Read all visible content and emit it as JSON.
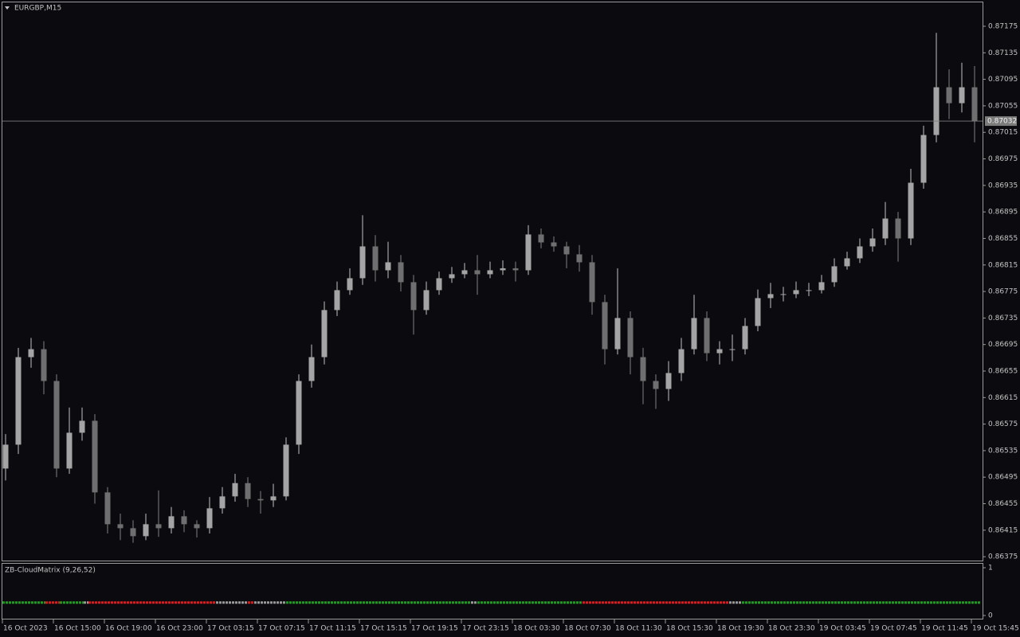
{
  "chart_data": [
    {
      "type": "candlestick",
      "title": "EURGBP,M15",
      "x": [
        1,
        5,
        9,
        13,
        17,
        21,
        25,
        29,
        33,
        37,
        41,
        45,
        49,
        53,
        57,
        61,
        65,
        69,
        73,
        77,
        81,
        85,
        89,
        93,
        97,
        101,
        105,
        109,
        113,
        117,
        121,
        125,
        129,
        133,
        137,
        141,
        145,
        149,
        153,
        157,
        161,
        165,
        169,
        173,
        177,
        181,
        185,
        189,
        193,
        197,
        201,
        205,
        209,
        213,
        217,
        221,
        225,
        229,
        233,
        237,
        241,
        245,
        249,
        253,
        257,
        261,
        265,
        269,
        273,
        277,
        281,
        285,
        289,
        293,
        297,
        301,
        305
      ],
      "open": [
        0.86508,
        0.86544,
        0.86676,
        0.86688,
        0.8664,
        0.86508,
        0.86562,
        0.8658,
        0.86472,
        0.86424,
        0.86418,
        0.86406,
        0.86424,
        0.86418,
        0.86436,
        0.86424,
        0.86418,
        0.86448,
        0.86466,
        0.86486,
        0.86462,
        0.8646,
        0.86466,
        0.86544,
        0.8664,
        0.86676,
        0.86747,
        0.86777,
        0.86795,
        0.86843,
        0.86807,
        0.86819,
        0.86789,
        0.86747,
        0.86777,
        0.86795,
        0.86801,
        0.86807,
        0.86801,
        0.86807,
        0.8681,
        0.86807,
        0.86861,
        0.86849,
        0.86843,
        0.86831,
        0.86819,
        0.86759,
        0.86688,
        0.86735,
        0.86676,
        0.8664,
        0.86628,
        0.86652,
        0.86688,
        0.86735,
        0.86682,
        0.86688,
        0.86688,
        0.86723,
        0.86765,
        0.86771,
        0.86771,
        0.86777,
        0.86777,
        0.86789,
        0.86813,
        0.86825,
        0.86843,
        0.86855,
        0.86885,
        0.86855,
        0.86939,
        0.87011,
        0.87083,
        0.87059,
        0.87083
      ],
      "high": [
        0.8656,
        0.8669,
        0.86705,
        0.867,
        0.8665,
        0.866,
        0.866,
        0.8659,
        0.8648,
        0.8644,
        0.8643,
        0.8644,
        0.86475,
        0.8645,
        0.86445,
        0.8643,
        0.86465,
        0.8648,
        0.865,
        0.86495,
        0.86474,
        0.86485,
        0.86555,
        0.8665,
        0.86695,
        0.8676,
        0.8679,
        0.8681,
        0.8689,
        0.8686,
        0.8685,
        0.8683,
        0.868,
        0.8679,
        0.86805,
        0.86812,
        0.86818,
        0.8683,
        0.8682,
        0.86822,
        0.8682,
        0.86875,
        0.8687,
        0.86858,
        0.8685,
        0.86845,
        0.8683,
        0.8677,
        0.8681,
        0.86745,
        0.8669,
        0.8665,
        0.8667,
        0.86705,
        0.8677,
        0.86745,
        0.867,
        0.8671,
        0.86735,
        0.86778,
        0.86788,
        0.86782,
        0.8679,
        0.86788,
        0.868,
        0.86825,
        0.86835,
        0.86855,
        0.8687,
        0.8691,
        0.86895,
        0.8696,
        0.87025,
        0.87165,
        0.8711,
        0.8712,
        0.87115
      ],
      "low": [
        0.8649,
        0.8653,
        0.8666,
        0.8662,
        0.86495,
        0.865,
        0.8655,
        0.86455,
        0.8641,
        0.864,
        0.86396,
        0.864,
        0.86405,
        0.8641,
        0.86412,
        0.86404,
        0.8641,
        0.8644,
        0.86458,
        0.8645,
        0.8644,
        0.8645,
        0.8646,
        0.8653,
        0.8663,
        0.86665,
        0.86738,
        0.8677,
        0.86785,
        0.8679,
        0.86795,
        0.86775,
        0.8671,
        0.8674,
        0.8677,
        0.86788,
        0.86795,
        0.8677,
        0.86795,
        0.868,
        0.8679,
        0.868,
        0.8684,
        0.86835,
        0.8681,
        0.86805,
        0.8674,
        0.86665,
        0.8668,
        0.8665,
        0.86605,
        0.86598,
        0.8661,
        0.8664,
        0.8668,
        0.8667,
        0.86665,
        0.8667,
        0.8668,
        0.86715,
        0.8675,
        0.8676,
        0.86765,
        0.86768,
        0.86772,
        0.86782,
        0.86808,
        0.86818,
        0.86835,
        0.86845,
        0.8682,
        0.86845,
        0.8693,
        0.87,
        0.87035,
        0.87045,
        0.87
      ],
      "close": [
        0.86544,
        0.86676,
        0.86688,
        0.8664,
        0.86508,
        0.86562,
        0.8658,
        0.86472,
        0.86424,
        0.86418,
        0.86406,
        0.86424,
        0.86418,
        0.86436,
        0.86424,
        0.86418,
        0.86448,
        0.86466,
        0.86486,
        0.86462,
        0.8646,
        0.86466,
        0.86544,
        0.8664,
        0.86676,
        0.86747,
        0.86777,
        0.86795,
        0.86843,
        0.86807,
        0.86819,
        0.86789,
        0.86747,
        0.86777,
        0.86795,
        0.86801,
        0.86807,
        0.86801,
        0.86807,
        0.8681,
        0.86807,
        0.86861,
        0.86849,
        0.86843,
        0.86831,
        0.86819,
        0.86759,
        0.86688,
        0.86735,
        0.86676,
        0.8664,
        0.86628,
        0.86652,
        0.86688,
        0.86735,
        0.86682,
        0.86688,
        0.86688,
        0.86723,
        0.86765,
        0.86771,
        0.86771,
        0.86777,
        0.86777,
        0.86789,
        0.86813,
        0.86825,
        0.86843,
        0.86855,
        0.86885,
        0.86855,
        0.86939,
        0.87011,
        0.87083,
        0.87059,
        0.87083,
        0.87032
      ],
      "up_color": "#a4a4a4",
      "down_color": "#6f6f6f",
      "price_line": 0.87032,
      "xlim": [
        0,
        307
      ],
      "xticks": [
        {
          "value": 0,
          "label": "16 Oct 2023"
        },
        {
          "value": 16,
          "label": "16 Oct 15:00"
        },
        {
          "value": 32,
          "label": "16 Oct 19:00"
        },
        {
          "value": 48,
          "label": "16 Oct 23:00"
        },
        {
          "value": 64,
          "label": "17 Oct 03:15"
        },
        {
          "value": 80,
          "label": "17 Oct 07:15"
        },
        {
          "value": 96,
          "label": "17 Oct 11:15"
        },
        {
          "value": 112,
          "label": "17 Oct 15:15"
        },
        {
          "value": 128,
          "label": "17 Oct 19:15"
        },
        {
          "value": 144,
          "label": "17 Oct 23:15"
        },
        {
          "value": 160,
          "label": "18 Oct 03:30"
        },
        {
          "value": 176,
          "label": "18 Oct 07:30"
        },
        {
          "value": 192,
          "label": "18 Oct 11:30"
        },
        {
          "value": 208,
          "label": "18 Oct 15:30"
        },
        {
          "value": 224,
          "label": "18 Oct 19:30"
        },
        {
          "value": 240,
          "label": "18 Oct 23:30"
        },
        {
          "value": 256,
          "label": "19 Oct 03:45"
        },
        {
          "value": 272,
          "label": "19 Oct 07:45"
        },
        {
          "value": 288,
          "label": "19 Oct 11:45"
        },
        {
          "value": 304,
          "label": "19 Oct 15:45"
        }
      ],
      "ylim": [
        0.86368,
        0.87211
      ],
      "yticks": [
        0.87175,
        0.87135,
        0.87095,
        0.87055,
        0.87015,
        0.86975,
        0.86935,
        0.86895,
        0.86855,
        0.86815,
        0.86775,
        0.86735,
        0.86695,
        0.86655,
        0.86615,
        0.86575,
        0.86535,
        0.86495,
        0.86455,
        0.86415,
        0.86375
      ]
    },
    {
      "type": "segments",
      "title": "ZB-CloudMatrix (9,26,52)",
      "ylim": [
        0,
        1
      ],
      "yticks": [
        1,
        0
      ],
      "level": 0.27,
      "xlim": [
        0,
        307
      ],
      "segments": [
        {
          "start": 0,
          "end": 13.5,
          "color": "#1e9e1e"
        },
        {
          "start": 13.5,
          "end": 18,
          "color": "#e01a1a"
        },
        {
          "start": 18,
          "end": 25.5,
          "color": "#1e9e1e"
        },
        {
          "start": 25.5,
          "end": 27,
          "color": "#9a9a9a"
        },
        {
          "start": 27,
          "end": 67,
          "color": "#e01a1a"
        },
        {
          "start": 67,
          "end": 77,
          "color": "#9a9a9a"
        },
        {
          "start": 77,
          "end": 79,
          "color": "#e01a1a"
        },
        {
          "start": 79,
          "end": 89,
          "color": "#9a9a9a"
        },
        {
          "start": 89,
          "end": 147,
          "color": "#1e9e1e"
        },
        {
          "start": 147,
          "end": 149,
          "color": "#9a9a9a"
        },
        {
          "start": 149,
          "end": 182,
          "color": "#1e9e1e"
        },
        {
          "start": 182,
          "end": 228,
          "color": "#e01a1a"
        },
        {
          "start": 228,
          "end": 232,
          "color": "#9a9a9a"
        },
        {
          "start": 232,
          "end": 307,
          "color": "#1e9e1e"
        }
      ]
    }
  ]
}
